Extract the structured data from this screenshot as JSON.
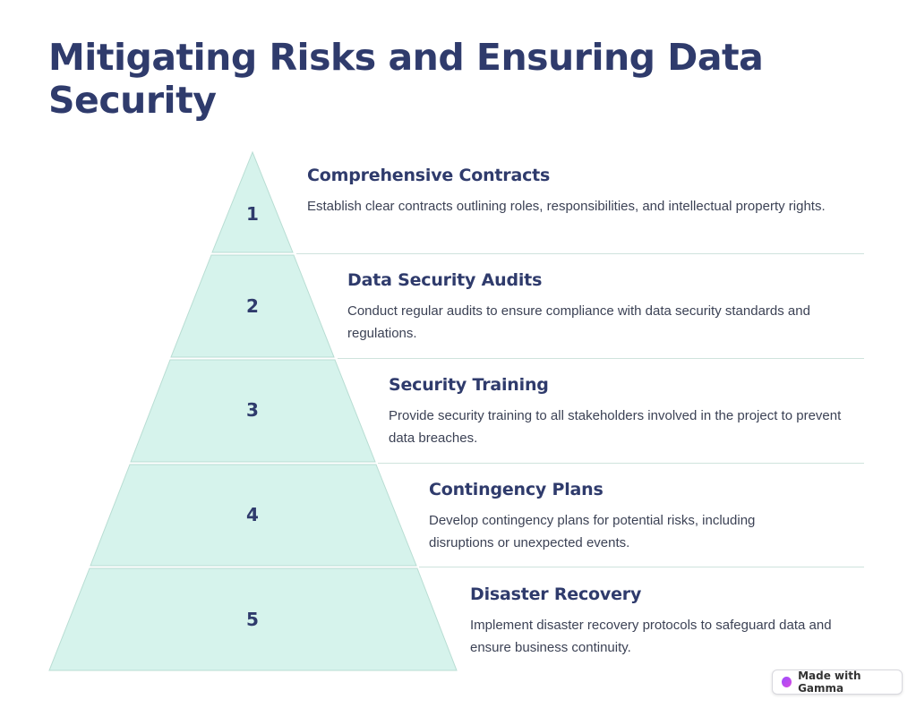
{
  "title": "Mitigating Risks and Ensuring Data Security",
  "tiers": [
    {
      "number": "1",
      "heading": "Comprehensive Contracts",
      "text": "Establish clear contracts outlining roles, responsibilities, and intellectual property rights."
    },
    {
      "number": "2",
      "heading": "Data Security Audits",
      "text": "Conduct regular audits to ensure compliance with data security standards and regulations."
    },
    {
      "number": "3",
      "heading": "Security Training",
      "text": "Provide security training to all stakeholders involved in the project to prevent data breaches."
    },
    {
      "number": "4",
      "heading": "Contingency Plans",
      "text": "Develop contingency plans for potential risks, including disruptions or unexpected events."
    },
    {
      "number": "5",
      "heading": "Disaster Recovery",
      "text": "Implement disaster recovery protocols to safeguard data and ensure business continuity."
    }
  ],
  "colors": {
    "tier_fill": "#d6f3ec",
    "tier_stroke": "#b8ddd3",
    "text_dark": "#2f3b6c"
  },
  "badge": {
    "label": "Made with Gamma",
    "icon": "gamma-logo-icon"
  }
}
